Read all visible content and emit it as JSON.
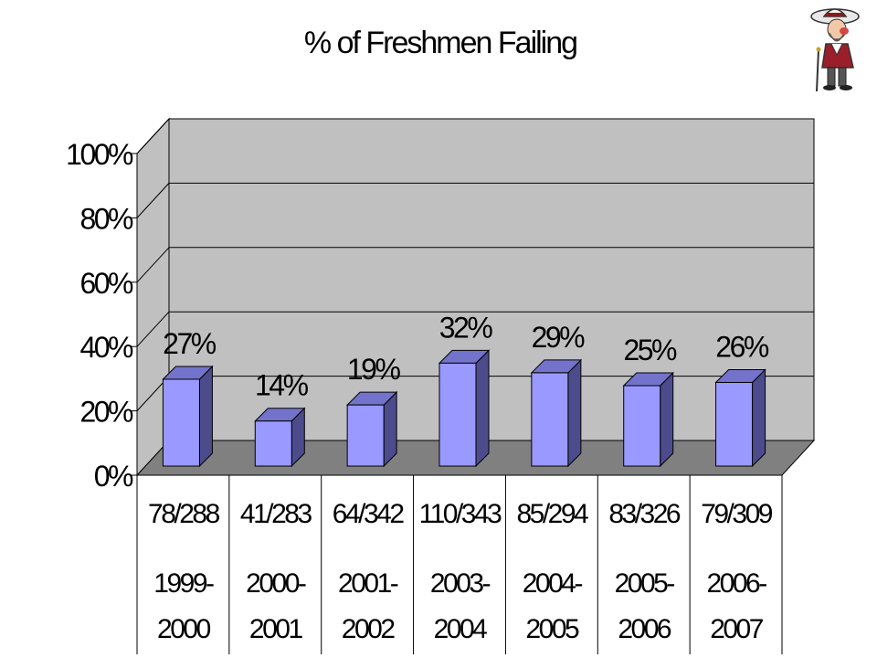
{
  "chart_data": {
    "type": "bar",
    "title": "% of Freshmen Failing",
    "categories": [
      "1999-2000",
      "2000-2001",
      "2001-2002",
      "2003-2004",
      "2004-2005",
      "2005-2006",
      "2006-2007"
    ],
    "category_lines": [
      [
        "1999-",
        "2000"
      ],
      [
        "2000-",
        "2001"
      ],
      [
        "2001-",
        "2002"
      ],
      [
        "2003-",
        "2004"
      ],
      [
        "2004-",
        "2005"
      ],
      [
        "2005-",
        "2006"
      ],
      [
        "2006-",
        "2007"
      ]
    ],
    "values": [
      27,
      14,
      19,
      32,
      29,
      25,
      26
    ],
    "data_labels": [
      "27%",
      "14%",
      "19%",
      "32%",
      "29%",
      "25%",
      "26%"
    ],
    "counts": [
      "78/288",
      "41/283",
      "64/342",
      "110/343",
      "85/294",
      "83/326",
      "79/309"
    ],
    "yticks": [
      "0%",
      "20%",
      "40%",
      "60%",
      "80%",
      "100%"
    ],
    "ylim": [
      0,
      100
    ],
    "grid": true,
    "style": "3d-column"
  },
  "colors": {
    "bar_front": "#9999ff",
    "bar_side": "#4c4c8c",
    "bar_top": "#7373cc",
    "wall": "#c0c0c0",
    "floor": "#808080",
    "mascot_icon": "rebel-mascot-icon"
  }
}
